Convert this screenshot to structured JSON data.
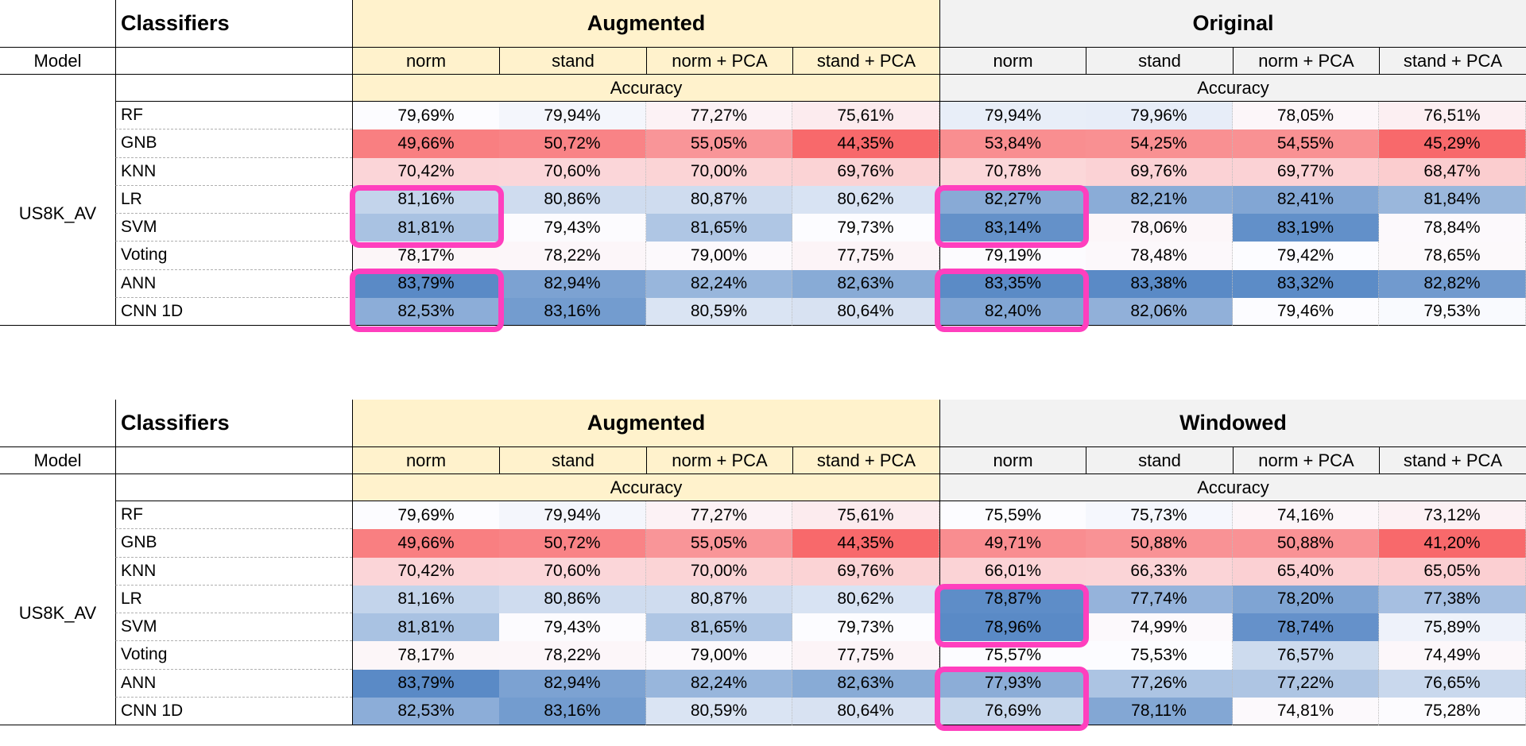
{
  "colors": {
    "highlight": "#ff3fbe",
    "augmented_header": "#fff2cc",
    "original_header": "#f2f2f2",
    "high": "#5b86c6",
    "low": "#f8696b"
  },
  "tables": [
    {
      "title_classifiers": "Classifiers",
      "group_left": "Augmented",
      "group_right": "Original",
      "model_header": "Model",
      "columns": [
        "norm",
        "stand",
        "norm + PCA",
        "stand + PCA"
      ],
      "metric_label": "Accuracy",
      "model": "US8K_AV",
      "rows": [
        {
          "clf": "RF",
          "values": [
            "79,69%",
            "79,94%",
            "77,27%",
            "75,61%",
            "79,94%",
            "79,96%",
            "78,05%",
            "76,51%"
          ]
        },
        {
          "clf": "GNB",
          "values": [
            "49,66%",
            "50,72%",
            "55,05%",
            "44,35%",
            "53,84%",
            "54,25%",
            "54,55%",
            "45,29%"
          ]
        },
        {
          "clf": "KNN",
          "values": [
            "70,42%",
            "70,60%",
            "70,00%",
            "69,76%",
            "70,78%",
            "69,76%",
            "69,77%",
            "68,47%"
          ]
        },
        {
          "clf": "LR",
          "values": [
            "81,16%",
            "80,86%",
            "80,87%",
            "80,62%",
            "82,27%",
            "82,21%",
            "82,41%",
            "81,84%"
          ]
        },
        {
          "clf": "SVM",
          "values": [
            "81,81%",
            "79,43%",
            "81,65%",
            "79,73%",
            "83,14%",
            "78,06%",
            "83,19%",
            "78,84%"
          ]
        },
        {
          "clf": "Voting",
          "values": [
            "78,17%",
            "78,22%",
            "79,00%",
            "77,75%",
            "79,19%",
            "78,48%",
            "79,42%",
            "78,65%"
          ]
        },
        {
          "clf": "ANN",
          "values": [
            "83,79%",
            "82,94%",
            "82,24%",
            "82,63%",
            "83,35%",
            "83,38%",
            "83,32%",
            "82,82%"
          ]
        },
        {
          "clf": "CNN 1D",
          "values": [
            "82,53%",
            "83,16%",
            "80,59%",
            "80,64%",
            "82,40%",
            "82,06%",
            "79,46%",
            "79,53%"
          ]
        }
      ]
    },
    {
      "title_classifiers": "Classifiers",
      "group_left": "Augmented",
      "group_right": "Windowed",
      "model_header": "Model",
      "columns": [
        "norm",
        "stand",
        "norm + PCA",
        "stand + PCA"
      ],
      "metric_label": "Accuracy",
      "model": "US8K_AV",
      "rows": [
        {
          "clf": "RF",
          "values": [
            "79,69%",
            "79,94%",
            "77,27%",
            "75,61%",
            "75,59%",
            "75,73%",
            "74,16%",
            "73,12%"
          ]
        },
        {
          "clf": "GNB",
          "values": [
            "49,66%",
            "50,72%",
            "55,05%",
            "44,35%",
            "49,71%",
            "50,88%",
            "50,88%",
            "41,20%"
          ]
        },
        {
          "clf": "KNN",
          "values": [
            "70,42%",
            "70,60%",
            "70,00%",
            "69,76%",
            "66,01%",
            "66,33%",
            "65,40%",
            "65,05%"
          ]
        },
        {
          "clf": "LR",
          "values": [
            "81,16%",
            "80,86%",
            "80,87%",
            "80,62%",
            "78,87%",
            "77,74%",
            "78,20%",
            "77,38%"
          ]
        },
        {
          "clf": "SVM",
          "values": [
            "81,81%",
            "79,43%",
            "81,65%",
            "79,73%",
            "78,96%",
            "74,99%",
            "78,74%",
            "75,89%"
          ]
        },
        {
          "clf": "Voting",
          "values": [
            "78,17%",
            "78,22%",
            "79,00%",
            "77,75%",
            "75,57%",
            "75,53%",
            "76,57%",
            "74,49%"
          ]
        },
        {
          "clf": "ANN",
          "values": [
            "83,79%",
            "82,94%",
            "82,24%",
            "82,63%",
            "77,93%",
            "77,26%",
            "77,22%",
            "76,65%"
          ]
        },
        {
          "clf": "CNN 1D",
          "values": [
            "82,53%",
            "83,16%",
            "80,59%",
            "80,64%",
            "76,69%",
            "78,11%",
            "74,81%",
            "75,28%"
          ]
        }
      ]
    }
  ]
}
